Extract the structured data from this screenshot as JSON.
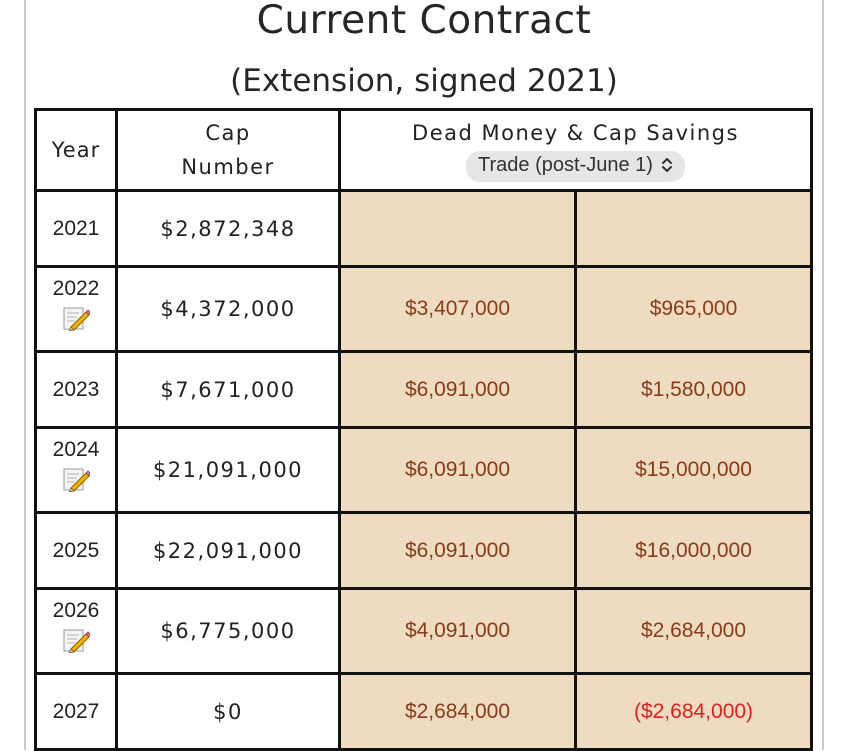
{
  "header": {
    "title": "Current Contract",
    "subtitle": "(Extension, signed 2021)"
  },
  "table": {
    "col_year": "Year",
    "col_cap_line1": "Cap",
    "col_cap_line2": "Number",
    "col_dead": "Dead Money & Cap Savings",
    "scenario_select": "Trade (post-June 1)",
    "rows": [
      {
        "year": "2021",
        "cap": "$2,872,348",
        "dead": "",
        "savings": "",
        "has_note": false
      },
      {
        "year": "2022",
        "cap": "$4,372,000",
        "dead": "$3,407,000",
        "savings": "$965,000",
        "has_note": true
      },
      {
        "year": "2023",
        "cap": "$7,671,000",
        "dead": "$6,091,000",
        "savings": "$1,580,000",
        "has_note": false
      },
      {
        "year": "2024",
        "cap": "$21,091,000",
        "dead": "$6,091,000",
        "savings": "$15,000,000",
        "has_note": true
      },
      {
        "year": "2025",
        "cap": "$22,091,000",
        "dead": "$6,091,000",
        "savings": "$16,000,000",
        "has_note": false
      },
      {
        "year": "2026",
        "cap": "$6,775,000",
        "dead": "$4,091,000",
        "savings": "$2,684,000",
        "has_note": true
      },
      {
        "year": "2027",
        "cap": "$0",
        "dead": "$2,684,000",
        "savings": "($2,684,000)",
        "has_note": false
      }
    ]
  },
  "colors": {
    "money_bg": "#eddcbf",
    "money_text": "#8b3a1c",
    "negative_text": "#e02020"
  },
  "icons": {
    "note": "note-pencil-icon",
    "chevron": "chevron-up-down-icon"
  }
}
